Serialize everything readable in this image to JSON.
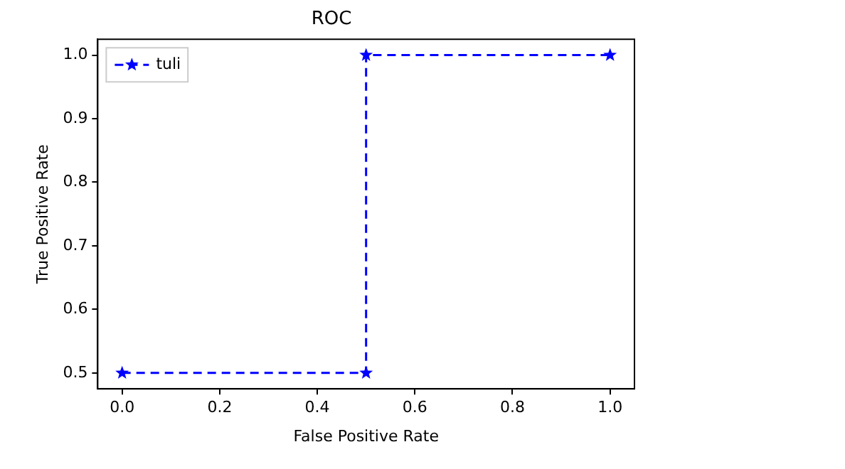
{
  "chart_data": {
    "type": "line",
    "title": "ROC",
    "xlabel": "False Positive Rate",
    "ylabel": "True Positive Rate",
    "x": [
      0,
      0.5,
      0.5,
      1.0
    ],
    "series": [
      {
        "name": "tuli",
        "color": "#0000ff",
        "values": [
          0.5,
          0.5,
          1.0,
          1.0
        ]
      }
    ],
    "xlim": [
      -0.05,
      1.05
    ],
    "ylim": [
      0.475,
      1.025
    ],
    "xticks": [
      {
        "value": 0,
        "label": "0.0"
      },
      0.2,
      0.4,
      0.6,
      0.8,
      {
        "value": 1,
        "label": "1.0"
      }
    ],
    "yticks": [
      0.5,
      0.6,
      0.7,
      0.8,
      0.9,
      {
        "value": 1,
        "label": "1.0"
      }
    ],
    "grid": false,
    "legend": "top left",
    "marker": "star",
    "line_style": "dashed"
  }
}
